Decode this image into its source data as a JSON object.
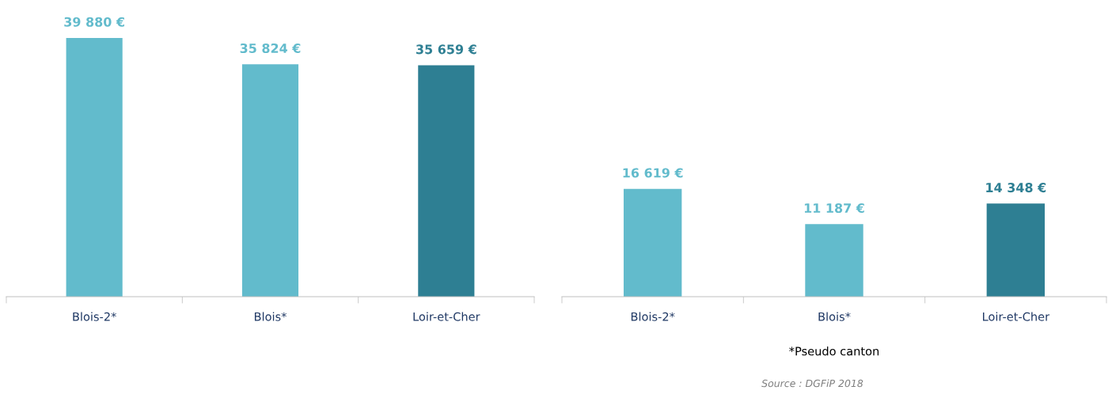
{
  "chart_data": [
    {
      "type": "bar",
      "categories": [
        "Blois-2*",
        "Blois*",
        "Loir-et-Cher"
      ],
      "values": [
        39880,
        35824,
        35659
      ],
      "colors": [
        "#62bbcc",
        "#62bbcc",
        "#2e7f93"
      ],
      "value_labels": [
        "39 880 €",
        "35 824 €",
        "35 659 €"
      ],
      "grid": false,
      "legend": false
    },
    {
      "type": "bar",
      "categories": [
        "Blois-2*",
        "Blois*",
        "Loir-et-Cher"
      ],
      "values": [
        16619,
        11187,
        14348
      ],
      "colors": [
        "#62bbcc",
        "#62bbcc",
        "#2e7f93"
      ],
      "value_labels": [
        "16 619 €",
        "11 187 €",
        "14 348 €"
      ],
      "grid": false,
      "legend": false,
      "annotations": [
        "*Pseudo canton",
        "Source : DGFiP 2018"
      ]
    }
  ]
}
